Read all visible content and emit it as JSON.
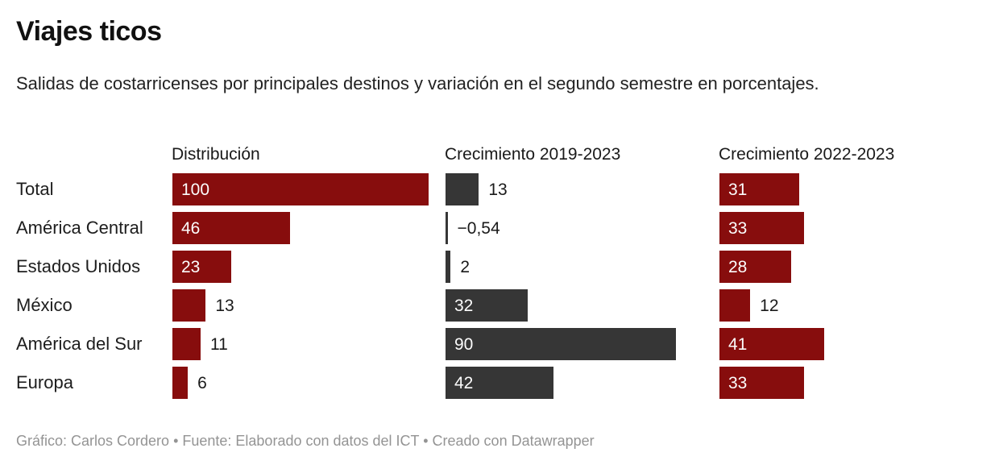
{
  "title": "Viajes ticos",
  "description": "Salidas de costarricenses por principales destinos y variación en el segundo semestre en porcentajes.",
  "footer_credits": "Gráfico: Carlos Cordero • Fuente: Elaborado con datos del ICT • Creado con Datawrapper",
  "colors": {
    "dark_red": "#870d0d",
    "dark_gray": "#363636",
    "label_inside": "#fcfcfc",
    "label_outside": "#1a1a1a",
    "footer_gray": "#949494"
  },
  "chart_data": {
    "type": "bar",
    "orientation": "horizontal",
    "unit": "percent",
    "grid": false,
    "legend": "none",
    "categories": [
      "Total",
      "América Central",
      "Estados Unidos",
      "México",
      "América del Sur",
      "Europa"
    ],
    "series": [
      {
        "name": "Distribución",
        "color": "#870d0d",
        "values": [
          100,
          46,
          23,
          13,
          11,
          6
        ],
        "value_labels": [
          "100",
          "46",
          "23",
          "13",
          "11",
          "6"
        ]
      },
      {
        "name": "Crecimiento 2019-2023",
        "color": "#363636",
        "values": [
          13,
          -0.54,
          2,
          32,
          90,
          42
        ],
        "value_labels": [
          "13",
          "−0,54",
          "2",
          "32",
          "90",
          "42"
        ]
      },
      {
        "name": "Crecimiento 2022-2023",
        "color": "#870d0d",
        "values": [
          31,
          33,
          28,
          12,
          41,
          33
        ],
        "value_labels": [
          "31",
          "33",
          "28",
          "12",
          "41",
          "33"
        ]
      }
    ],
    "value_axis_range": [
      0,
      100
    ]
  }
}
